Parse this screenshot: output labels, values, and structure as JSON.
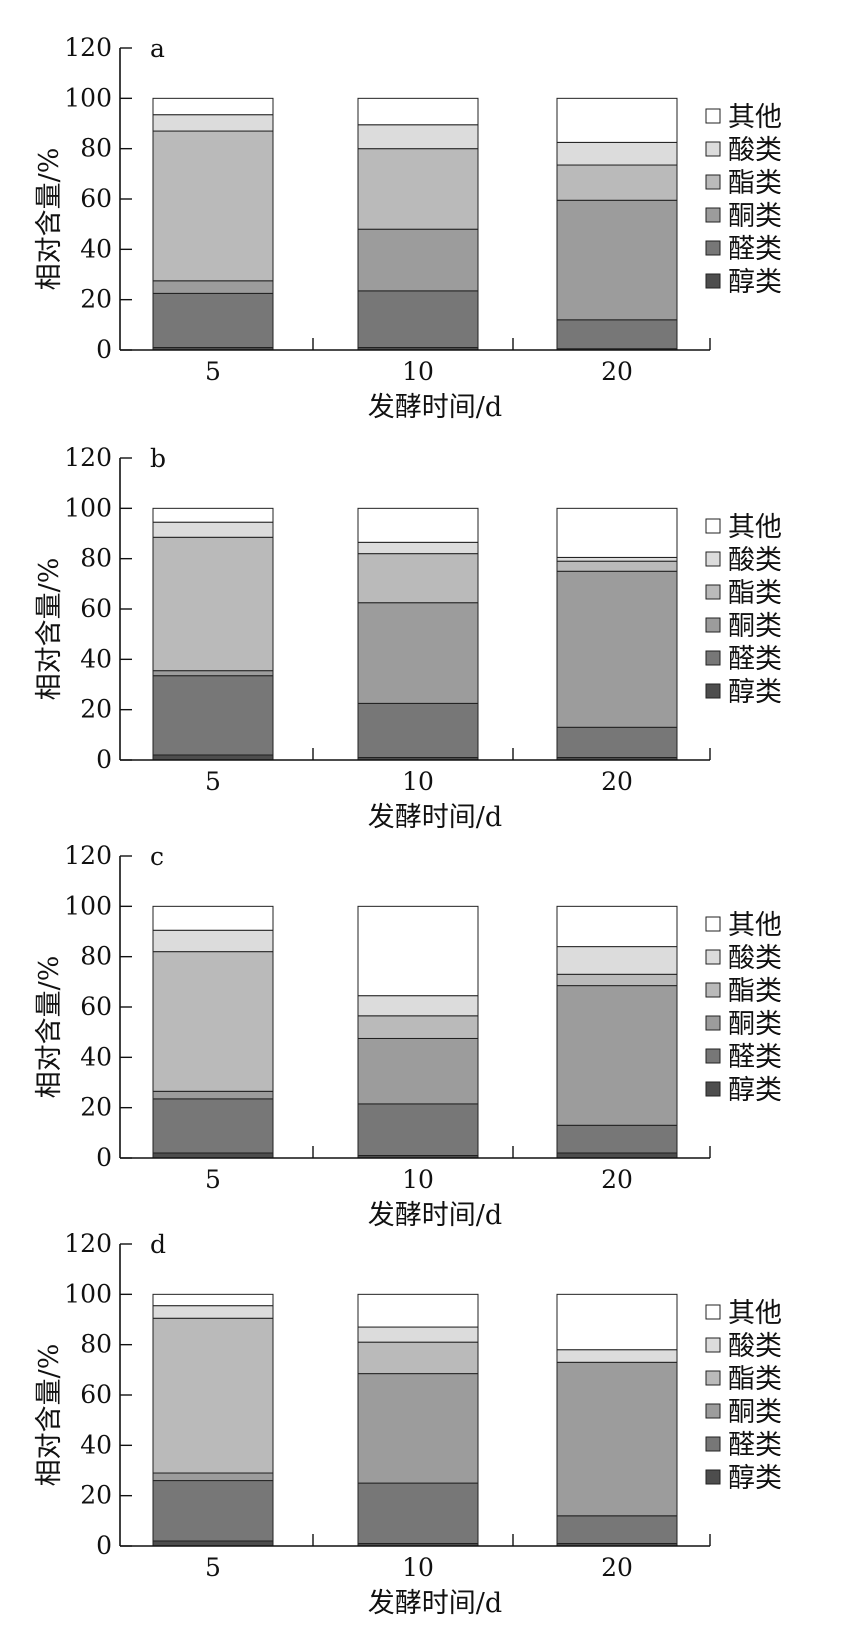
{
  "chart_data": [
    {
      "type": "bar",
      "stacked": true,
      "panel_label": "a",
      "categories": [
        "5",
        "10",
        "20"
      ],
      "xlabel": "发酵时间/d",
      "ylabel": "相对含量/%",
      "ylim": [
        0,
        120
      ],
      "yticks": [
        0,
        20,
        40,
        60,
        80,
        100,
        120
      ],
      "legend_position": "right",
      "series": [
        {
          "name": "醇类",
          "color": "#4d4d4d",
          "values": [
            1,
            1,
            0.5
          ]
        },
        {
          "name": "醛类",
          "color": "#777777",
          "values": [
            21.5,
            22.5,
            11.5
          ]
        },
        {
          "name": "酮类",
          "color": "#9c9c9c",
          "values": [
            5,
            24.5,
            47.5
          ]
        },
        {
          "name": "酯类",
          "color": "#bababa",
          "values": [
            59.5,
            32,
            14
          ]
        },
        {
          "name": "酸类",
          "color": "#dcdcdc",
          "values": [
            6.5,
            9.5,
            9
          ]
        },
        {
          "name": "其他",
          "color": "#ffffff",
          "values": [
            6.5,
            10.5,
            17.5
          ]
        }
      ]
    },
    {
      "type": "bar",
      "stacked": true,
      "panel_label": "b",
      "categories": [
        "5",
        "10",
        "20"
      ],
      "xlabel": "发酵时间/d",
      "ylabel": "相对含量/%",
      "ylim": [
        0,
        120
      ],
      "yticks": [
        0,
        20,
        40,
        60,
        80,
        100,
        120
      ],
      "legend_position": "right",
      "series": [
        {
          "name": "醇类",
          "color": "#4d4d4d",
          "values": [
            2,
            1,
            1
          ]
        },
        {
          "name": "醛类",
          "color": "#777777",
          "values": [
            31.5,
            21.5,
            12
          ]
        },
        {
          "name": "酮类",
          "color": "#9c9c9c",
          "values": [
            2,
            40,
            62
          ]
        },
        {
          "name": "酯类",
          "color": "#bababa",
          "values": [
            53,
            19.5,
            4
          ]
        },
        {
          "name": "酸类",
          "color": "#dcdcdc",
          "values": [
            6,
            4.5,
            1.5
          ]
        },
        {
          "name": "其他",
          "color": "#ffffff",
          "values": [
            5.5,
            13.5,
            19.5
          ]
        }
      ]
    },
    {
      "type": "bar",
      "stacked": true,
      "panel_label": "c",
      "categories": [
        "5",
        "10",
        "20"
      ],
      "xlabel": "发酵时间/d",
      "ylabel": "相对含量/%",
      "ylim": [
        0,
        120
      ],
      "yticks": [
        0,
        20,
        40,
        60,
        80,
        100,
        120
      ],
      "legend_position": "right",
      "series": [
        {
          "name": "醇类",
          "color": "#4d4d4d",
          "values": [
            2,
            1,
            2
          ]
        },
        {
          "name": "醛类",
          "color": "#777777",
          "values": [
            21.5,
            20.5,
            11
          ]
        },
        {
          "name": "酮类",
          "color": "#9c9c9c",
          "values": [
            3,
            26,
            55.5
          ]
        },
        {
          "name": "酯类",
          "color": "#bababa",
          "values": [
            55.5,
            9,
            4.5
          ]
        },
        {
          "name": "酸类",
          "color": "#dcdcdc",
          "values": [
            8.5,
            8,
            11
          ]
        },
        {
          "name": "其他",
          "color": "#ffffff",
          "values": [
            9.5,
            35.5,
            16
          ]
        }
      ]
    },
    {
      "type": "bar",
      "stacked": true,
      "panel_label": "d",
      "categories": [
        "5",
        "10",
        "20"
      ],
      "xlabel": "发酵时间/d",
      "ylabel": "相对含量/%",
      "ylim": [
        0,
        120
      ],
      "yticks": [
        0,
        20,
        40,
        60,
        80,
        100,
        120
      ],
      "legend_position": "right",
      "series": [
        {
          "name": "醇类",
          "color": "#4d4d4d",
          "values": [
            2,
            1,
            1
          ]
        },
        {
          "name": "醛类",
          "color": "#777777",
          "values": [
            24,
            24,
            11
          ]
        },
        {
          "name": "酮类",
          "color": "#9c9c9c",
          "values": [
            3,
            43.5,
            61
          ]
        },
        {
          "name": "酯类",
          "color": "#bababa",
          "values": [
            61.5,
            12.5,
            0
          ]
        },
        {
          "name": "酸类",
          "color": "#dcdcdc",
          "values": [
            5,
            6,
            5
          ]
        },
        {
          "name": "其他",
          "color": "#ffffff",
          "values": [
            4.5,
            13,
            22
          ]
        }
      ]
    }
  ]
}
